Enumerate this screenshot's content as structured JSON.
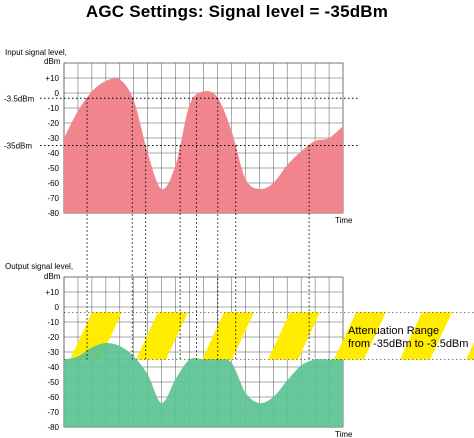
{
  "title": "AGC Settings: Signal level = -35dBm",
  "colors": {
    "input_fill": "#f0858e",
    "output_fill": "#5cc294",
    "band_yellow": "#ffec00",
    "grid": "#555555"
  },
  "chart_data": [
    {
      "type": "area",
      "name": "input",
      "ylabel_lines": [
        "Input signal level,",
        "dBm"
      ],
      "xlabel": "Time",
      "ylim": [
        -80,
        20
      ],
      "ytick_labels": [
        "+10",
        "0",
        "-10",
        "-20",
        "-30",
        "-40",
        "-50",
        "-60",
        "-70",
        "-80"
      ],
      "ytick_values": [
        10,
        0,
        -10,
        -20,
        -30,
        -40,
        -50,
        -60,
        -70,
        -80
      ],
      "reference_lines": [
        {
          "label": "-3.5dBm",
          "value": -3.5
        },
        {
          "label": "-35dBm",
          "value": -35
        }
      ],
      "x": [
        0,
        5,
        10,
        15,
        20,
        25,
        30,
        35,
        40,
        45,
        50,
        55,
        60,
        65,
        70,
        75,
        80,
        85,
        90,
        95,
        100
      ],
      "y": [
        -30,
        -12,
        1,
        8,
        9,
        -5,
        -40,
        -64,
        -48,
        -8,
        1,
        -3,
        -25,
        -57,
        -64,
        -60,
        -48,
        -39,
        -32,
        -30,
        -22
      ]
    },
    {
      "type": "area",
      "name": "output",
      "ylabel_lines": [
        "Output signal level,",
        "dBm"
      ],
      "xlabel": "Time",
      "ylim": [
        -80,
        20
      ],
      "ytick_labels": [
        "+10",
        "0",
        "-10",
        "-20",
        "-30",
        "-40",
        "-50",
        "-60",
        "-70",
        "-80"
      ],
      "ytick_values": [
        10,
        0,
        -10,
        -20,
        -30,
        -40,
        -50,
        -60,
        -70,
        -80
      ],
      "band": {
        "from": -35,
        "to": -3.5
      },
      "annotation_lines": [
        "Attenuation Range",
        "from -35dBm to -3.5dBm"
      ],
      "x": [
        0,
        5,
        10,
        15,
        20,
        25,
        30,
        35,
        40,
        45,
        50,
        55,
        60,
        65,
        70,
        75,
        80,
        85,
        90,
        95,
        100
      ],
      "y": [
        -35,
        -33,
        -27,
        -24,
        -26,
        -33,
        -45,
        -64,
        -48,
        -35,
        -35,
        -35,
        -37,
        -57,
        -64,
        -60,
        -49,
        -39,
        -35,
        -35,
        -35
      ]
    }
  ]
}
